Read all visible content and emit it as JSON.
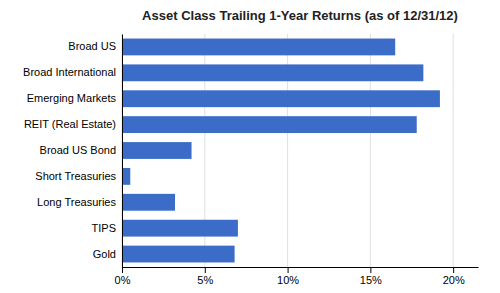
{
  "chart_data": {
    "type": "bar",
    "orientation": "horizontal",
    "title": "Asset Class Trailing 1-Year Returns (as of 12/31/12)",
    "categories": [
      "Gold",
      "TIPS",
      "Long Treasuries",
      "Short Treasuries",
      "Broad US Bond",
      "REIT (Real Estate)",
      "Emerging Markets",
      "Broad International",
      "Broad US"
    ],
    "values": [
      6.8,
      7.0,
      3.2,
      0.5,
      4.2,
      17.8,
      19.2,
      18.2,
      16.5
    ],
    "color": "#3a6cc8",
    "xlim": [
      0,
      21.5
    ],
    "xticks": [
      {
        "value": 0,
        "label": "0%"
      },
      {
        "value": 5,
        "label": "5%"
      },
      {
        "value": 10,
        "label": "10%"
      },
      {
        "value": 15,
        "label": "15%"
      },
      {
        "value": 20,
        "label": "20%"
      }
    ],
    "grid": true
  }
}
